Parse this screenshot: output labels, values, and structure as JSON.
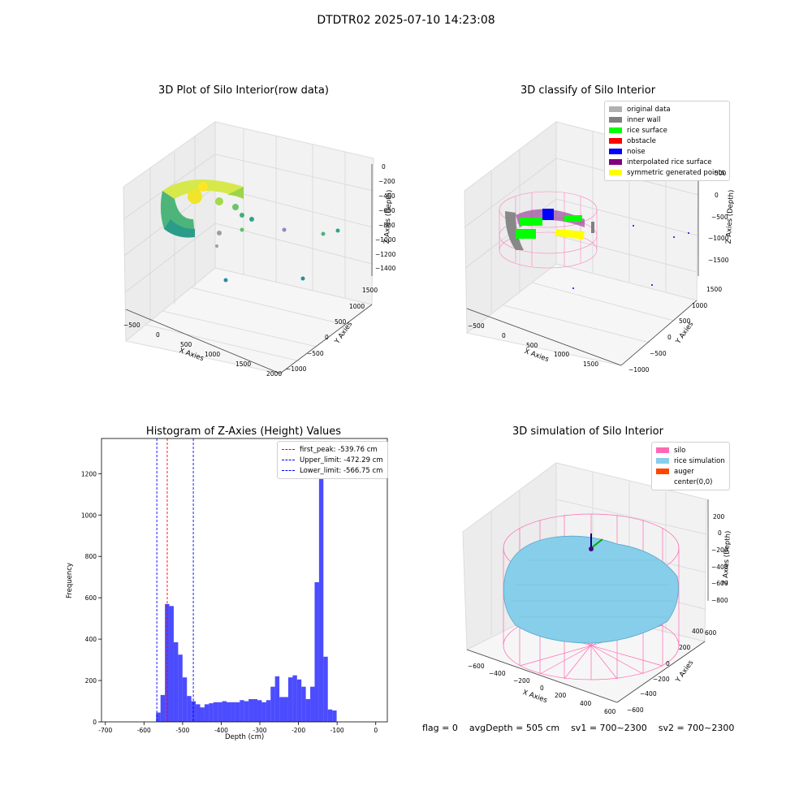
{
  "suptitle": "DTDTR02 2025-07-10 14:23:08",
  "panels": {
    "raw": {
      "title": "3D Plot of Silo Interior(row data)",
      "xlabel": "X Axies",
      "ylabel": "Y Axies",
      "zlabel": "Z Axies (Depth)",
      "xticks": [
        "−500",
        "0",
        "500",
        "1000",
        "1500",
        "2000"
      ],
      "yticks": [
        "−1000",
        "−500",
        "0",
        "500",
        "1000",
        "1500"
      ],
      "zticks": [
        "0",
        "−200",
        "−400",
        "−600",
        "−800",
        "−1000",
        "−1200",
        "−1400"
      ]
    },
    "classify": {
      "title": "3D classify of Silo Interior",
      "xlabel": "X Axies",
      "ylabel": "Y Axies",
      "zlabel": "Z Axies (Depth)",
      "xticks": [
        "−500",
        "0",
        "500",
        "1000",
        "1500"
      ],
      "yticks": [
        "−1000",
        "−500",
        "0",
        "500",
        "1000",
        "1500"
      ],
      "zticks": [
        "500",
        "0",
        "−500",
        "−1000",
        "−1500"
      ],
      "legend": [
        {
          "label": "original data",
          "color": "#b0b0b0"
        },
        {
          "label": "inner wall",
          "color": "#808080"
        },
        {
          "label": "rice surface",
          "color": "#00ff00"
        },
        {
          "label": "obstacle",
          "color": "#ff0000"
        },
        {
          "label": "noise",
          "color": "#0000ff"
        },
        {
          "label": "interpolated rice surface",
          "color": "#800080"
        },
        {
          "label": "symmetric generated points",
          "color": "#ffff00"
        }
      ]
    },
    "simulation": {
      "title": "3D simulation of Silo Interior",
      "xlabel": "X Axies",
      "ylabel": "Y Axies",
      "zlabel": "Z Axies (Depth)",
      "xticks": [
        "−600",
        "−400",
        "−200",
        "0",
        "200",
        "400",
        "600"
      ],
      "yticks": [
        "−600",
        "−400",
        "−200",
        "0",
        "200",
        "400",
        "600"
      ],
      "zticks": [
        "200",
        "0",
        "−200",
        "−400",
        "−600",
        "−800"
      ],
      "legend": [
        {
          "label": "silo",
          "color": "#ff69b4"
        },
        {
          "label": "rice simulation",
          "color": "#87ceeb"
        },
        {
          "label": "auger",
          "color": "#ff4500"
        },
        {
          "label": "center(0,0)",
          "color": ""
        }
      ]
    }
  },
  "footer": {
    "flag": "flag = 0",
    "avg": "avgDepth = 505 cm",
    "sv1": "sv1 = 700~2300",
    "sv2": "sv2 = 700~2300"
  },
  "chart_data": [
    {
      "type": "bar",
      "title": "Histogram of Z-Axies (Height) Values",
      "xlabel": "Depth (cm)",
      "ylabel": "Frequency",
      "xlim": [
        -710,
        30
      ],
      "ylim": [
        0,
        1370
      ],
      "xticks": [
        -700,
        -600,
        -500,
        -400,
        -300,
        -200,
        -100,
        0
      ],
      "yticks": [
        0,
        200,
        400,
        600,
        800,
        1000,
        1200
      ],
      "bin_width": 11.4,
      "bin_starts": [
        -580,
        -568.6,
        -557.2,
        -545.8,
        -534.4,
        -523,
        -511.6,
        -500.2,
        -488.8,
        -477.4,
        -466,
        -454.6,
        -443.2,
        -431.8,
        -420.4,
        -409,
        -397.6,
        -386.2,
        -374.8,
        -363.4,
        -352,
        -340.6,
        -329.2,
        -317.8,
        -306.4,
        -295,
        -283.6,
        -272.2,
        -260.8,
        -249.4,
        -238,
        -226.6,
        -215.2,
        -203.8,
        -192.4,
        -181,
        -169.6,
        -158.2,
        -146.8,
        -135.4,
        -124,
        -112.6,
        -101.2,
        -89.8,
        -78.4,
        -67,
        -55.6,
        -44.2,
        -32.8,
        -21.4,
        -10
      ],
      "values": [
        0,
        45,
        130,
        570,
        560,
        385,
        325,
        215,
        125,
        100,
        85,
        70,
        85,
        90,
        95,
        95,
        100,
        95,
        95,
        95,
        105,
        100,
        110,
        110,
        105,
        95,
        105,
        170,
        220,
        120,
        120,
        215,
        225,
        205,
        170,
        110,
        170,
        675,
        1330,
        315,
        60,
        55,
        0,
        0,
        0,
        0,
        0,
        0,
        0,
        0,
        0
      ],
      "series_name": "Frequency",
      "color": "#0000ff",
      "vlines": [
        {
          "label": "first_peak: -539.76 cm",
          "x": -539.76,
          "color": "#ff0000"
        },
        {
          "label": "Upper_limit: -472.29 cm",
          "x": -472.29,
          "color": "#0000ff"
        },
        {
          "label": "Lower_limit: -566.75 cm",
          "x": -566.75,
          "color": "#0000ff"
        }
      ],
      "grid": false,
      "legend_position": "upper right"
    }
  ]
}
